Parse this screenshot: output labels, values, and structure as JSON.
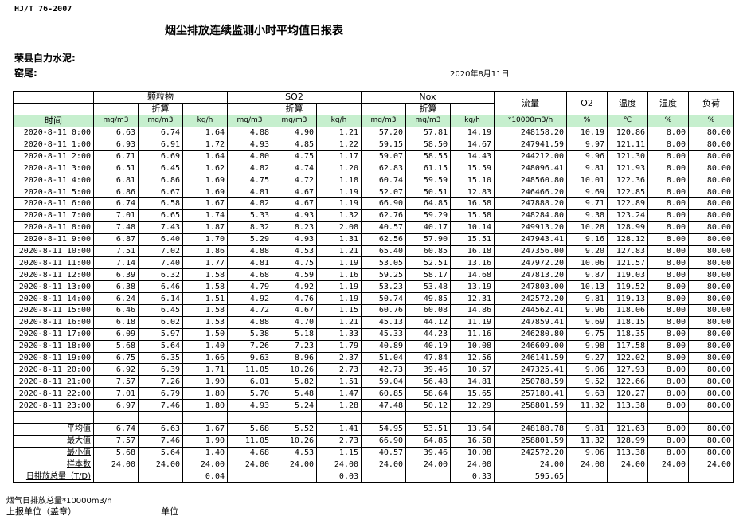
{
  "header": {
    "standard": "HJ/T  76-2007",
    "title": "烟尘排放连续监测小时平均值日报表",
    "company": "荣县自力水泥:",
    "kiln": "窑尾:",
    "date": "2020年8月11日"
  },
  "columns": {
    "groups": [
      "颗粒物",
      "SO2",
      "Nox"
    ],
    "converted": "折算",
    "flow": "流量",
    "o2": "O2",
    "temp": "温度",
    "humidity": "湿度",
    "load": "负荷",
    "time": "时间",
    "units": [
      "mg/m3",
      "mg/m3",
      "kg/h",
      "mg/m3",
      "mg/m3",
      "kg/h",
      "mg/m3",
      "mg/m3",
      "kg/h",
      "*10000m3/h",
      "%",
      "℃",
      "%",
      "%"
    ]
  },
  "rows": [
    [
      "2020-8-11 0:00",
      "6.63",
      "6.74",
      "1.64",
      "4.88",
      "4.90",
      "1.21",
      "57.20",
      "57.81",
      "14.19",
      "248158.20",
      "10.19",
      "120.86",
      "8.00",
      "80.00"
    ],
    [
      "2020-8-11 1:00",
      "6.93",
      "6.91",
      "1.72",
      "4.93",
      "4.85",
      "1.22",
      "59.15",
      "58.50",
      "14.67",
      "247941.59",
      "9.97",
      "121.11",
      "8.00",
      "80.00"
    ],
    [
      "2020-8-11 2:00",
      "6.71",
      "6.69",
      "1.64",
      "4.80",
      "4.75",
      "1.17",
      "59.07",
      "58.55",
      "14.43",
      "244212.00",
      "9.96",
      "121.30",
      "8.00",
      "80.00"
    ],
    [
      "2020-8-11 3:00",
      "6.51",
      "6.45",
      "1.62",
      "4.82",
      "4.74",
      "1.20",
      "62.83",
      "61.15",
      "15.59",
      "248096.41",
      "9.81",
      "121.93",
      "8.00",
      "80.00"
    ],
    [
      "2020-8-11 4:00",
      "6.81",
      "6.86",
      "1.69",
      "4.75",
      "4.72",
      "1.18",
      "60.74",
      "59.59",
      "15.10",
      "248560.80",
      "10.01",
      "122.36",
      "8.00",
      "80.00"
    ],
    [
      "2020-8-11 5:00",
      "6.86",
      "6.67",
      "1.69",
      "4.81",
      "4.67",
      "1.19",
      "52.07",
      "50.51",
      "12.83",
      "246466.20",
      "9.69",
      "122.85",
      "8.00",
      "80.00"
    ],
    [
      "2020-8-11 6:00",
      "6.74",
      "6.58",
      "1.67",
      "4.82",
      "4.67",
      "1.19",
      "66.90",
      "64.85",
      "16.58",
      "247888.20",
      "9.71",
      "122.89",
      "8.00",
      "80.00"
    ],
    [
      "2020-8-11 7:00",
      "7.01",
      "6.65",
      "1.74",
      "5.33",
      "4.93",
      "1.32",
      "62.76",
      "59.29",
      "15.58",
      "248284.80",
      "9.38",
      "123.24",
      "8.00",
      "80.00"
    ],
    [
      "2020-8-11 8:00",
      "7.48",
      "7.43",
      "1.87",
      "8.32",
      "8.23",
      "2.08",
      "40.57",
      "40.17",
      "10.14",
      "249913.20",
      "10.28",
      "128.99",
      "8.00",
      "80.00"
    ],
    [
      "2020-8-11 9:00",
      "6.87",
      "6.40",
      "1.70",
      "5.29",
      "4.93",
      "1.31",
      "62.56",
      "57.90",
      "15.51",
      "247943.41",
      "9.16",
      "128.12",
      "8.00",
      "80.00"
    ],
    [
      "2020-8-11 10:00",
      "7.51",
      "7.02",
      "1.86",
      "4.88",
      "4.53",
      "1.21",
      "65.40",
      "60.85",
      "16.18",
      "247356.00",
      "9.20",
      "127.83",
      "8.00",
      "80.00"
    ],
    [
      "2020-8-11 11:00",
      "7.14",
      "7.40",
      "1.77",
      "4.81",
      "4.75",
      "1.19",
      "53.05",
      "52.51",
      "13.16",
      "247972.20",
      "10.06",
      "121.57",
      "8.00",
      "80.00"
    ],
    [
      "2020-8-11 12:00",
      "6.39",
      "6.32",
      "1.58",
      "4.68",
      "4.59",
      "1.16",
      "59.25",
      "58.17",
      "14.68",
      "247813.20",
      "9.87",
      "119.03",
      "8.00",
      "80.00"
    ],
    [
      "2020-8-11 13:00",
      "6.38",
      "6.46",
      "1.58",
      "4.79",
      "4.92",
      "1.19",
      "53.23",
      "53.48",
      "13.19",
      "247803.00",
      "10.13",
      "119.52",
      "8.00",
      "80.00"
    ],
    [
      "2020-8-11 14:00",
      "6.24",
      "6.14",
      "1.51",
      "4.92",
      "4.76",
      "1.19",
      "50.74",
      "49.85",
      "12.31",
      "242572.20",
      "9.81",
      "119.13",
      "8.00",
      "80.00"
    ],
    [
      "2020-8-11 15:00",
      "6.46",
      "6.45",
      "1.58",
      "4.72",
      "4.67",
      "1.15",
      "60.76",
      "60.08",
      "14.86",
      "244562.41",
      "9.96",
      "118.06",
      "8.00",
      "80.00"
    ],
    [
      "2020-8-11 16:00",
      "6.18",
      "6.02",
      "1.53",
      "4.88",
      "4.70",
      "1.21",
      "45.13",
      "44.12",
      "11.19",
      "247859.41",
      "9.69",
      "118.15",
      "8.00",
      "80.00"
    ],
    [
      "2020-8-11 17:00",
      "6.09",
      "5.97",
      "1.50",
      "5.38",
      "5.18",
      "1.33",
      "45.33",
      "44.23",
      "11.16",
      "246280.80",
      "9.75",
      "118.35",
      "8.00",
      "80.00"
    ],
    [
      "2020-8-11 18:00",
      "5.68",
      "5.64",
      "1.40",
      "7.26",
      "7.23",
      "1.79",
      "40.89",
      "40.19",
      "10.08",
      "246609.00",
      "9.98",
      "117.58",
      "8.00",
      "80.00"
    ],
    [
      "2020-8-11 19:00",
      "6.75",
      "6.35",
      "1.66",
      "9.63",
      "8.96",
      "2.37",
      "51.04",
      "47.84",
      "12.56",
      "246141.59",
      "9.27",
      "122.02",
      "8.00",
      "80.00"
    ],
    [
      "2020-8-11 20:00",
      "6.92",
      "6.39",
      "1.71",
      "11.05",
      "10.26",
      "2.73",
      "42.73",
      "39.46",
      "10.57",
      "247325.41",
      "9.06",
      "127.93",
      "8.00",
      "80.00"
    ],
    [
      "2020-8-11 21:00",
      "7.57",
      "7.26",
      "1.90",
      "6.01",
      "5.82",
      "1.51",
      "59.04",
      "56.48",
      "14.81",
      "250788.59",
      "9.52",
      "122.66",
      "8.00",
      "80.00"
    ],
    [
      "2020-8-11 22:00",
      "7.01",
      "6.79",
      "1.80",
      "5.70",
      "5.48",
      "1.47",
      "60.85",
      "58.64",
      "15.65",
      "257180.41",
      "9.63",
      "120.27",
      "8.00",
      "80.00"
    ],
    [
      "2020-8-11 23:00",
      "6.97",
      "7.46",
      "1.80",
      "4.93",
      "5.24",
      "1.28",
      "47.48",
      "50.12",
      "12.29",
      "258801.59",
      "11.32",
      "113.38",
      "8.00",
      "80.00"
    ]
  ],
  "summary": [
    [
      "平均值",
      "6.74",
      "6.63",
      "1.67",
      "5.68",
      "5.52",
      "1.41",
      "54.95",
      "53.51",
      "13.64",
      "248188.78",
      "9.81",
      "121.63",
      "8.00",
      "80.00"
    ],
    [
      "最大值",
      "7.57",
      "7.46",
      "1.90",
      "11.05",
      "10.26",
      "2.73",
      "66.90",
      "64.85",
      "16.58",
      "258801.59",
      "11.32",
      "128.99",
      "8.00",
      "80.00"
    ],
    [
      "最小值",
      "5.68",
      "5.64",
      "1.40",
      "4.68",
      "4.53",
      "1.15",
      "40.57",
      "39.46",
      "10.08",
      "242572.20",
      "9.06",
      "113.38",
      "8.00",
      "80.00"
    ],
    [
      "样本数",
      "24.00",
      "24.00",
      "24.00",
      "24.00",
      "24.00",
      "24.00",
      "24.00",
      "24.00",
      "24.00",
      "24.00",
      "24.00",
      "24.00",
      "24.00",
      "24.00"
    ],
    [
      "日排放总量（T/D)",
      "",
      "",
      "0.04",
      "",
      "",
      "0.03",
      "",
      "",
      "0.33",
      "595.65",
      "",
      "",
      "",
      ""
    ]
  ],
  "footer": {
    "flue_total": "烟气日排放总量*10000m3/h",
    "reporter": "上报单位（盖章）",
    "unit": "单位"
  }
}
